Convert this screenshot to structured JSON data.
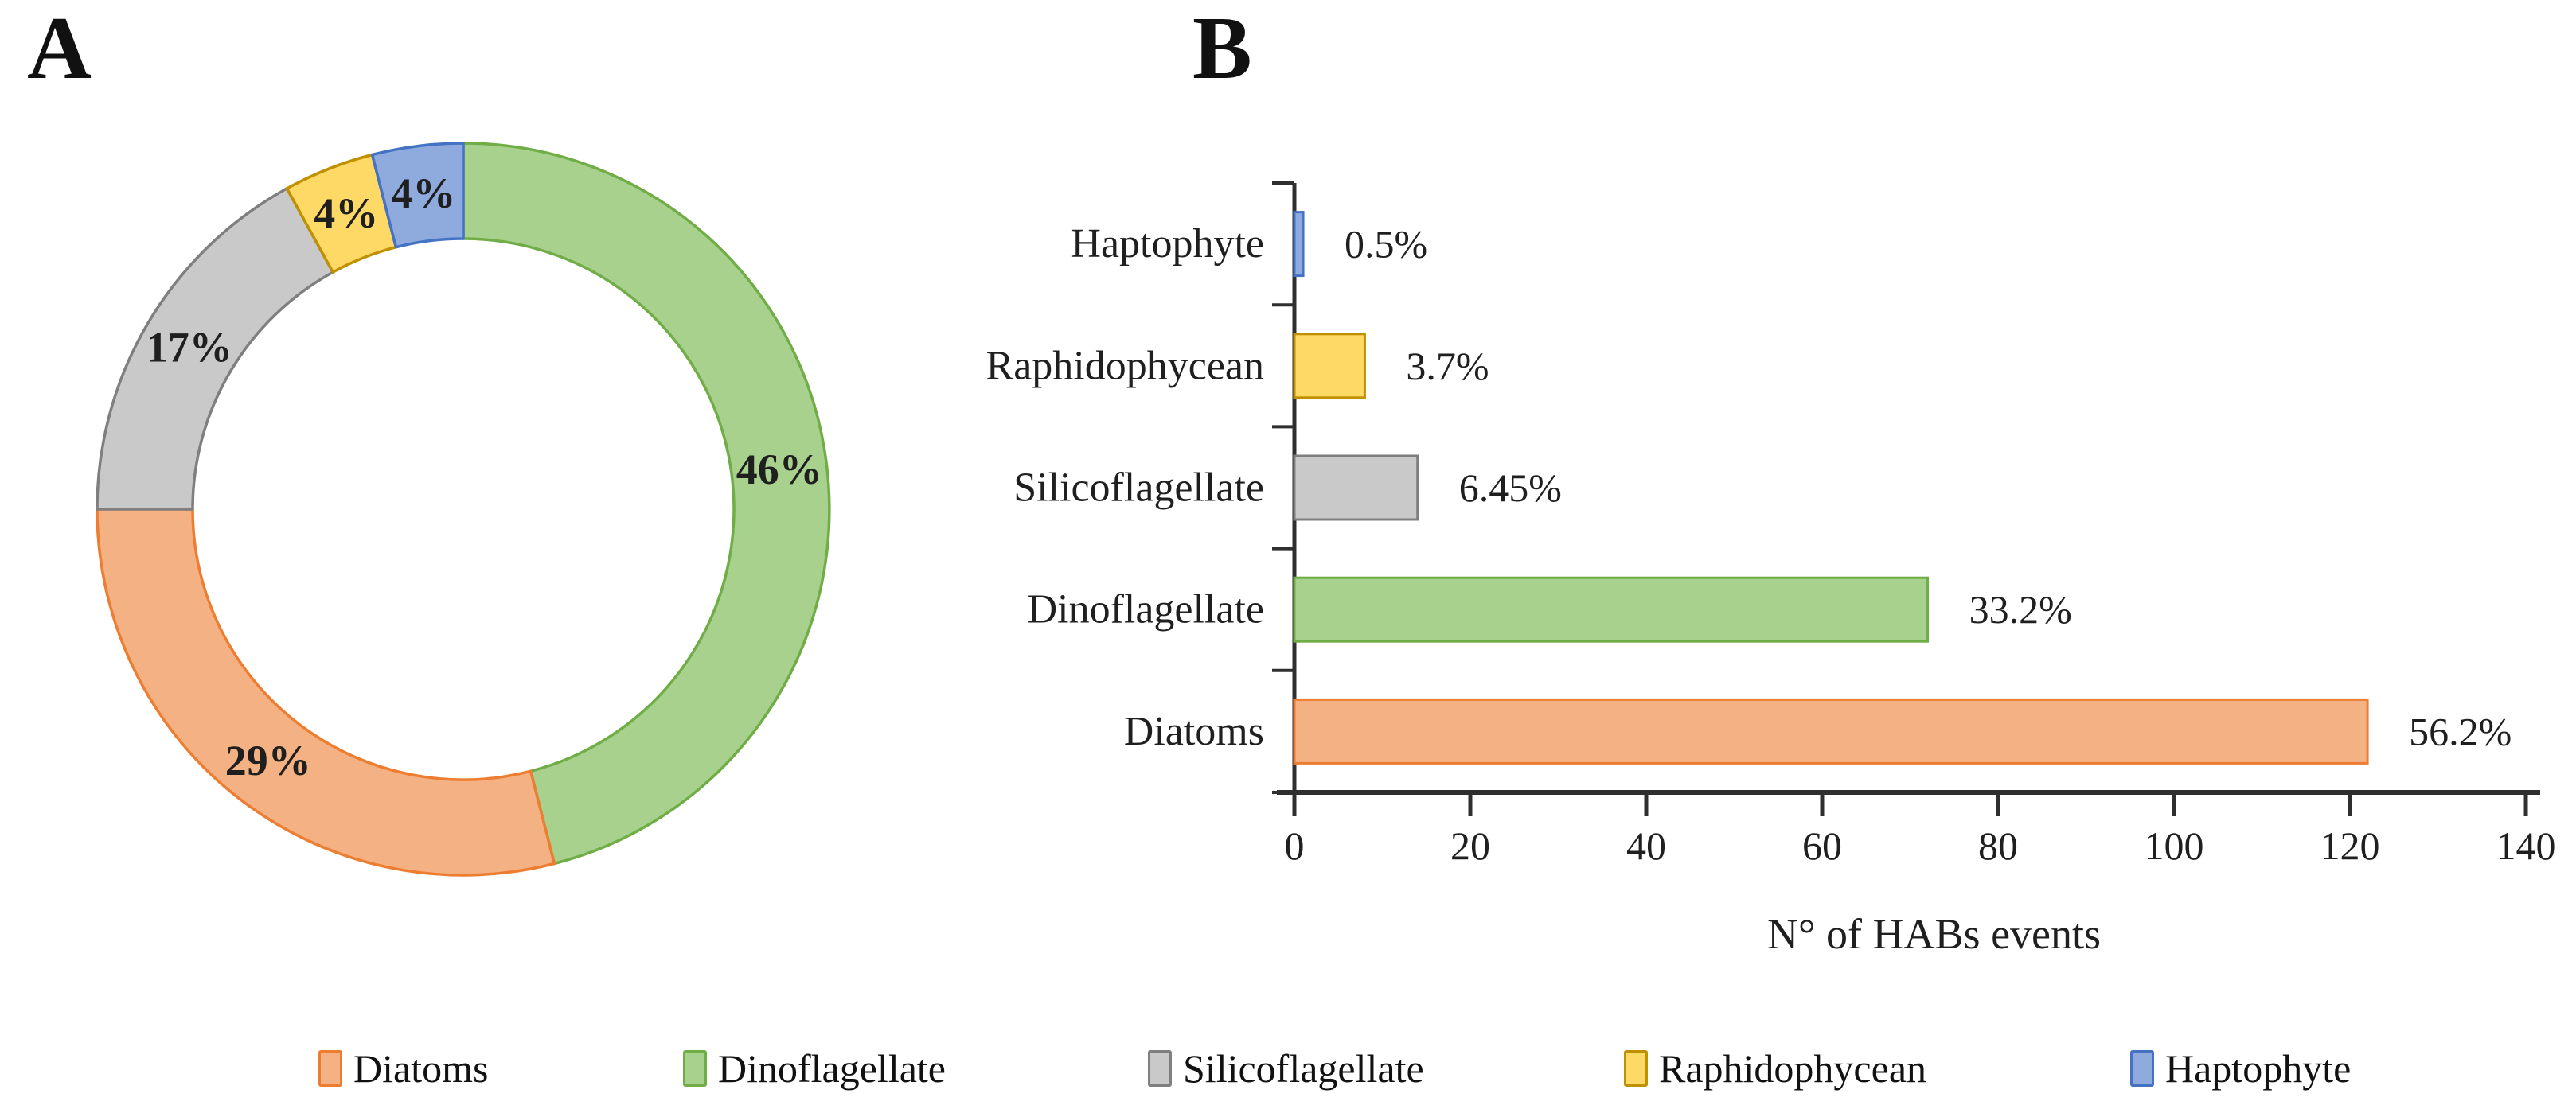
{
  "figure": {
    "panel_a_label": "A",
    "panel_b_label": "B"
  },
  "palette": {
    "diatoms": {
      "fill": "#F4B183",
      "border": "#ED7D31"
    },
    "dinoflagellate": {
      "fill": "#A9D18E",
      "border": "#70AD47"
    },
    "silicoflagellate": {
      "fill": "#C9C9C9",
      "border": "#7F7F7F"
    },
    "raphidophycean": {
      "fill": "#FFD966",
      "border": "#BF9000"
    },
    "haptophyte": {
      "fill": "#8FAADC",
      "border": "#4472C4"
    }
  },
  "chart_data": [
    {
      "id": "taxa-donut",
      "type": "pie",
      "subtype": "donut",
      "panel": "A",
      "title": "",
      "direction": "clockwise",
      "start_angle_deg": 0,
      "slices": [
        {
          "key": "dinoflagellate",
          "label": "Dinoflagellate",
          "percent": 46,
          "data_label": "46%"
        },
        {
          "key": "diatoms",
          "label": "Diatoms",
          "percent": 29,
          "data_label": "29%"
        },
        {
          "key": "silicoflagellate",
          "label": "Silicoflagellate",
          "percent": 17,
          "data_label": "17%"
        },
        {
          "key": "raphidophycean",
          "label": "Raphidophycean",
          "percent": 4,
          "data_label": "4%"
        },
        {
          "key": "haptophyte",
          "label": "Haptophyte",
          "percent": 4,
          "data_label": "4%"
        }
      ]
    },
    {
      "id": "habs-events-bar",
      "type": "bar",
      "panel": "B",
      "orientation": "horizontal",
      "title": "",
      "xlabel": "N° of HABs events",
      "xlim": [
        0,
        140
      ],
      "xticks": [
        0,
        20,
        40,
        60,
        80,
        100,
        120,
        140
      ],
      "xtick_labels": [
        "0",
        "20",
        "40",
        "60",
        "80",
        "100",
        "120",
        "140"
      ],
      "grid": false,
      "categories": [
        "Haptophyte",
        "Raphidophycean",
        "Silicoflagellate",
        "Dinoflagellate",
        "Diatoms"
      ],
      "keys": [
        "haptophyte",
        "raphidophycean",
        "silicoflagellate",
        "dinoflagellate",
        "diatoms"
      ],
      "values": [
        1,
        8,
        14,
        72,
        122
      ],
      "data_labels": [
        "0.5%",
        "3.7%",
        "6.45%",
        "33.2%",
        "56.2%"
      ]
    }
  ],
  "legend": {
    "items": [
      {
        "key": "diatoms",
        "label": "Diatoms"
      },
      {
        "key": "dinoflagellate",
        "label": "Dinoflagellate"
      },
      {
        "key": "silicoflagellate",
        "label": "Silicoflagellate"
      },
      {
        "key": "raphidophycean",
        "label": "Raphidophycean"
      },
      {
        "key": "haptophyte",
        "label": "Haptophyte"
      }
    ]
  }
}
